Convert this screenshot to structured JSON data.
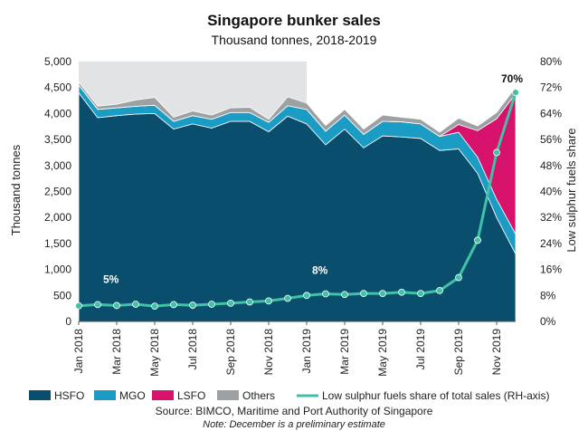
{
  "chart_data": {
    "type": "area",
    "title": "Singapore bunker sales",
    "subtitle": "Thousand tonnes, 2018-2019",
    "ylabel": "Thousand tonnes",
    "y2label": "Low sulphur fuels share",
    "ylim": [
      0,
      5000
    ],
    "y2lim": [
      0,
      80
    ],
    "yticks": [
      "0",
      "500",
      "1,000",
      "1,500",
      "2,000",
      "2,500",
      "3,000",
      "3,500",
      "4,000",
      "4,500",
      "5,000"
    ],
    "y2ticks": [
      "0%",
      "8%",
      "16%",
      "24%",
      "32%",
      "40%",
      "48%",
      "56%",
      "64%",
      "72%",
      "80%"
    ],
    "xtick_labels": [
      "Jan 2018",
      "Mar 2018",
      "May 2018",
      "Jul 2018",
      "Sep 2018",
      "Nov 2018",
      "Jan 2019",
      "Mar 2019",
      "May 2019",
      "Jul 2019",
      "Sep 2019",
      "Nov 2019"
    ],
    "months": [
      "Jan 2018",
      "Feb 2018",
      "Mar 2018",
      "Apr 2018",
      "May 2018",
      "Jun 2018",
      "Jul 2018",
      "Aug 2018",
      "Sep 2018",
      "Oct 2018",
      "Nov 2018",
      "Dec 2018",
      "Jan 2019",
      "Feb 2019",
      "Mar 2019",
      "Apr 2019",
      "May 2019",
      "Jun 2019",
      "Jul 2019",
      "Aug 2019",
      "Sep 2019",
      "Oct 2019",
      "Nov 2019",
      "Dec 2019"
    ],
    "shaded_range": [
      "Jan 2018",
      "Jan 2019"
    ],
    "stacked_series": [
      {
        "name": "HSFO",
        "color": "#0a4e6e",
        "values": [
          4400,
          3920,
          3960,
          3990,
          4000,
          3700,
          3800,
          3720,
          3850,
          3850,
          3650,
          3950,
          3800,
          3400,
          3700,
          3340,
          3570,
          3550,
          3520,
          3290,
          3320,
          2850,
          2000,
          1300
        ]
      },
      {
        "name": "MGO",
        "color": "#1b9cc4",
        "values": [
          150,
          160,
          150,
          150,
          160,
          150,
          160,
          170,
          170,
          170,
          180,
          200,
          280,
          260,
          270,
          260,
          280,
          290,
          280,
          270,
          320,
          310,
          350,
          380
        ]
      },
      {
        "name": "LSFO",
        "color": "#d6126c",
        "values": [
          0,
          0,
          0,
          0,
          0,
          0,
          0,
          0,
          0,
          0,
          0,
          0,
          0,
          0,
          0,
          0,
          0,
          0,
          0,
          0,
          150,
          510,
          1550,
          2700
        ]
      },
      {
        "name": "Others",
        "color": "#9ea1a3",
        "values": [
          60,
          60,
          70,
          120,
          150,
          80,
          90,
          80,
          90,
          100,
          60,
          170,
          120,
          110,
          110,
          100,
          120,
          90,
          90,
          80,
          120,
          90,
          120,
          130
        ]
      }
    ],
    "line_series": {
      "name": "Low sulphur fuels share of total sales (RH-axis)",
      "axis": "right",
      "color": "#3fc2a6",
      "values": [
        4.8,
        5.2,
        4.9,
        5.3,
        4.7,
        5.2,
        5.0,
        5.3,
        5.6,
        6.0,
        6.3,
        7.1,
        8.0,
        8.5,
        8.3,
        8.6,
        8.6,
        9.0,
        8.6,
        9.5,
        13.5,
        25.0,
        52.0,
        70.5
      ]
    },
    "annotations": [
      {
        "text": "5%",
        "month": "Feb 2018",
        "value": 5.2
      },
      {
        "text": "8%",
        "month": "Jan 2019",
        "value": 8.0
      },
      {
        "text": "70%",
        "month": "Dec 2019",
        "value": 70.5
      }
    ],
    "legend_position": "bottom",
    "source": "Source: BIMCO, Maritime and Port Authority of Singapore",
    "note": "Note: December is a preliminary estimate"
  }
}
